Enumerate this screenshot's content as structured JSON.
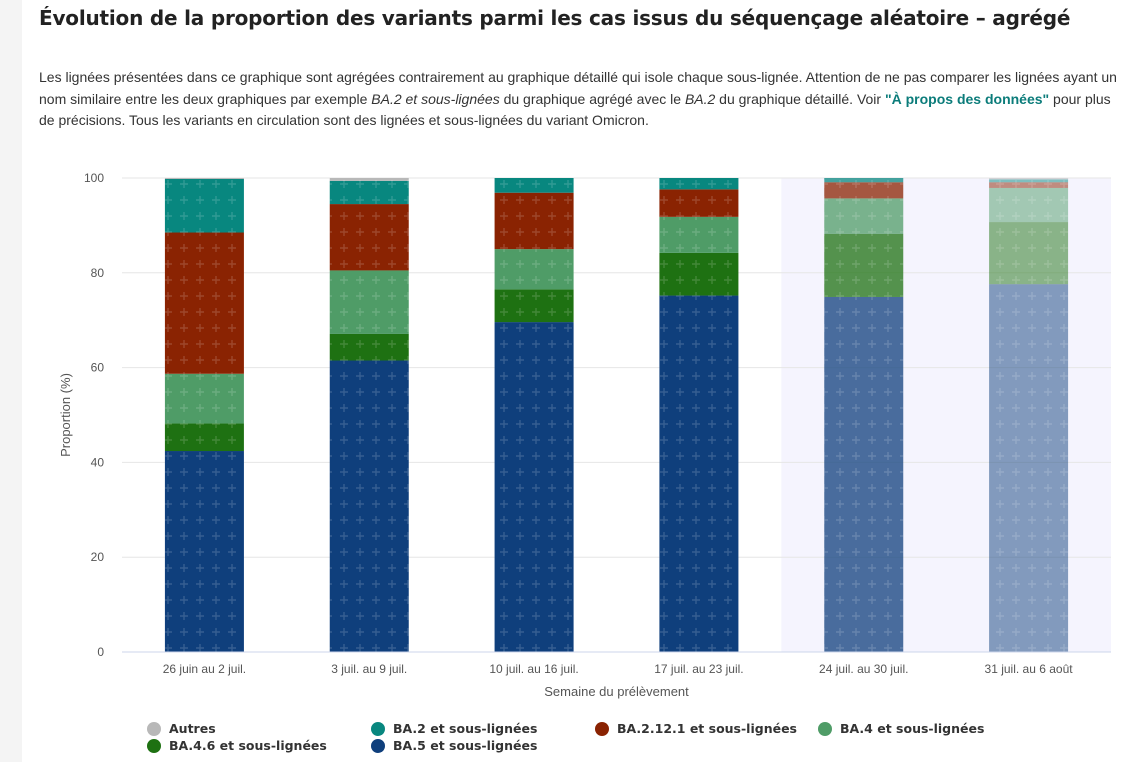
{
  "page": {
    "title": "Évolution de la proportion des variants parmi les cas issus du séquençage aléatoire – agrégé",
    "intro": {
      "p1": "Les lignées présentées dans ce graphique sont agrégées contrairement au graphique détaillé qui isole chaque sous-lignée. Attention de ne pas comparer les lignées ayant un nom similaire entre les deux graphiques par exemple ",
      "em1": "BA.2 et sous-lignées",
      "p2": " du graphique agrégé avec le ",
      "em2": "BA.2",
      "p3": " du graphique détaillé. Voir ",
      "link": "\"À propos des données\"",
      "p4": " pour plus de précisions. Tous les variants en circulation sont des lignées et sous-lignées du variant Omicron."
    }
  },
  "chart_data": {
    "type": "bar",
    "stacked": true,
    "xlabel": "Semaine du prélèvement",
    "ylabel": "Proportion (%)",
    "ylim": [
      0,
      100
    ],
    "yticks": [
      0,
      20,
      40,
      60,
      80,
      100
    ],
    "grid": true,
    "legend_position": "bottom",
    "categories": [
      "26 juin au 2 juil.",
      "3 juil. au 9 juil.",
      "10 juil. au 16 juil.",
      "17 juil. au 23 juil.",
      "24 juil. au 30 juil.",
      "31 juil. au 6 août"
    ],
    "faded_categories": [
      4,
      5
    ],
    "series": [
      {
        "name": "BA.5 et sous-lignées",
        "color": "#0f3f7c",
        "values": [
          42.4,
          61.5,
          69.6,
          75.2,
          74.9,
          77.6
        ]
      },
      {
        "name": "BA.4.6 et sous-lignées",
        "color": "#1e7112",
        "values": [
          5.8,
          5.6,
          6.9,
          9.0,
          13.3,
          13.1
        ]
      },
      {
        "name": "BA.4 et sous-lignées",
        "color": "#4f9c67",
        "values": [
          10.5,
          13.4,
          8.5,
          7.6,
          7.5,
          7.2
        ]
      },
      {
        "name": "BA.2.12.1 et sous-lignées",
        "color": "#8a2302",
        "values": [
          29.8,
          14.0,
          11.9,
          5.8,
          3.4,
          1.2
        ]
      },
      {
        "name": "BA.2 et sous-lignées",
        "color": "#08877f",
        "values": [
          11.3,
          4.9,
          3.1,
          2.4,
          0.9,
          0.6
        ]
      },
      {
        "name": "Autres",
        "color": "#b8b8b8",
        "values": [
          0.2,
          0.6,
          0.0,
          0.0,
          0.0,
          0.3
        ]
      }
    ],
    "legend_order": [
      "Autres",
      "BA.2 et sous-lignées",
      "BA.2.12.1 et sous-lignées",
      "BA.4 et sous-lignées",
      "BA.4.6 et sous-lignées",
      "BA.5 et sous-lignées"
    ]
  }
}
